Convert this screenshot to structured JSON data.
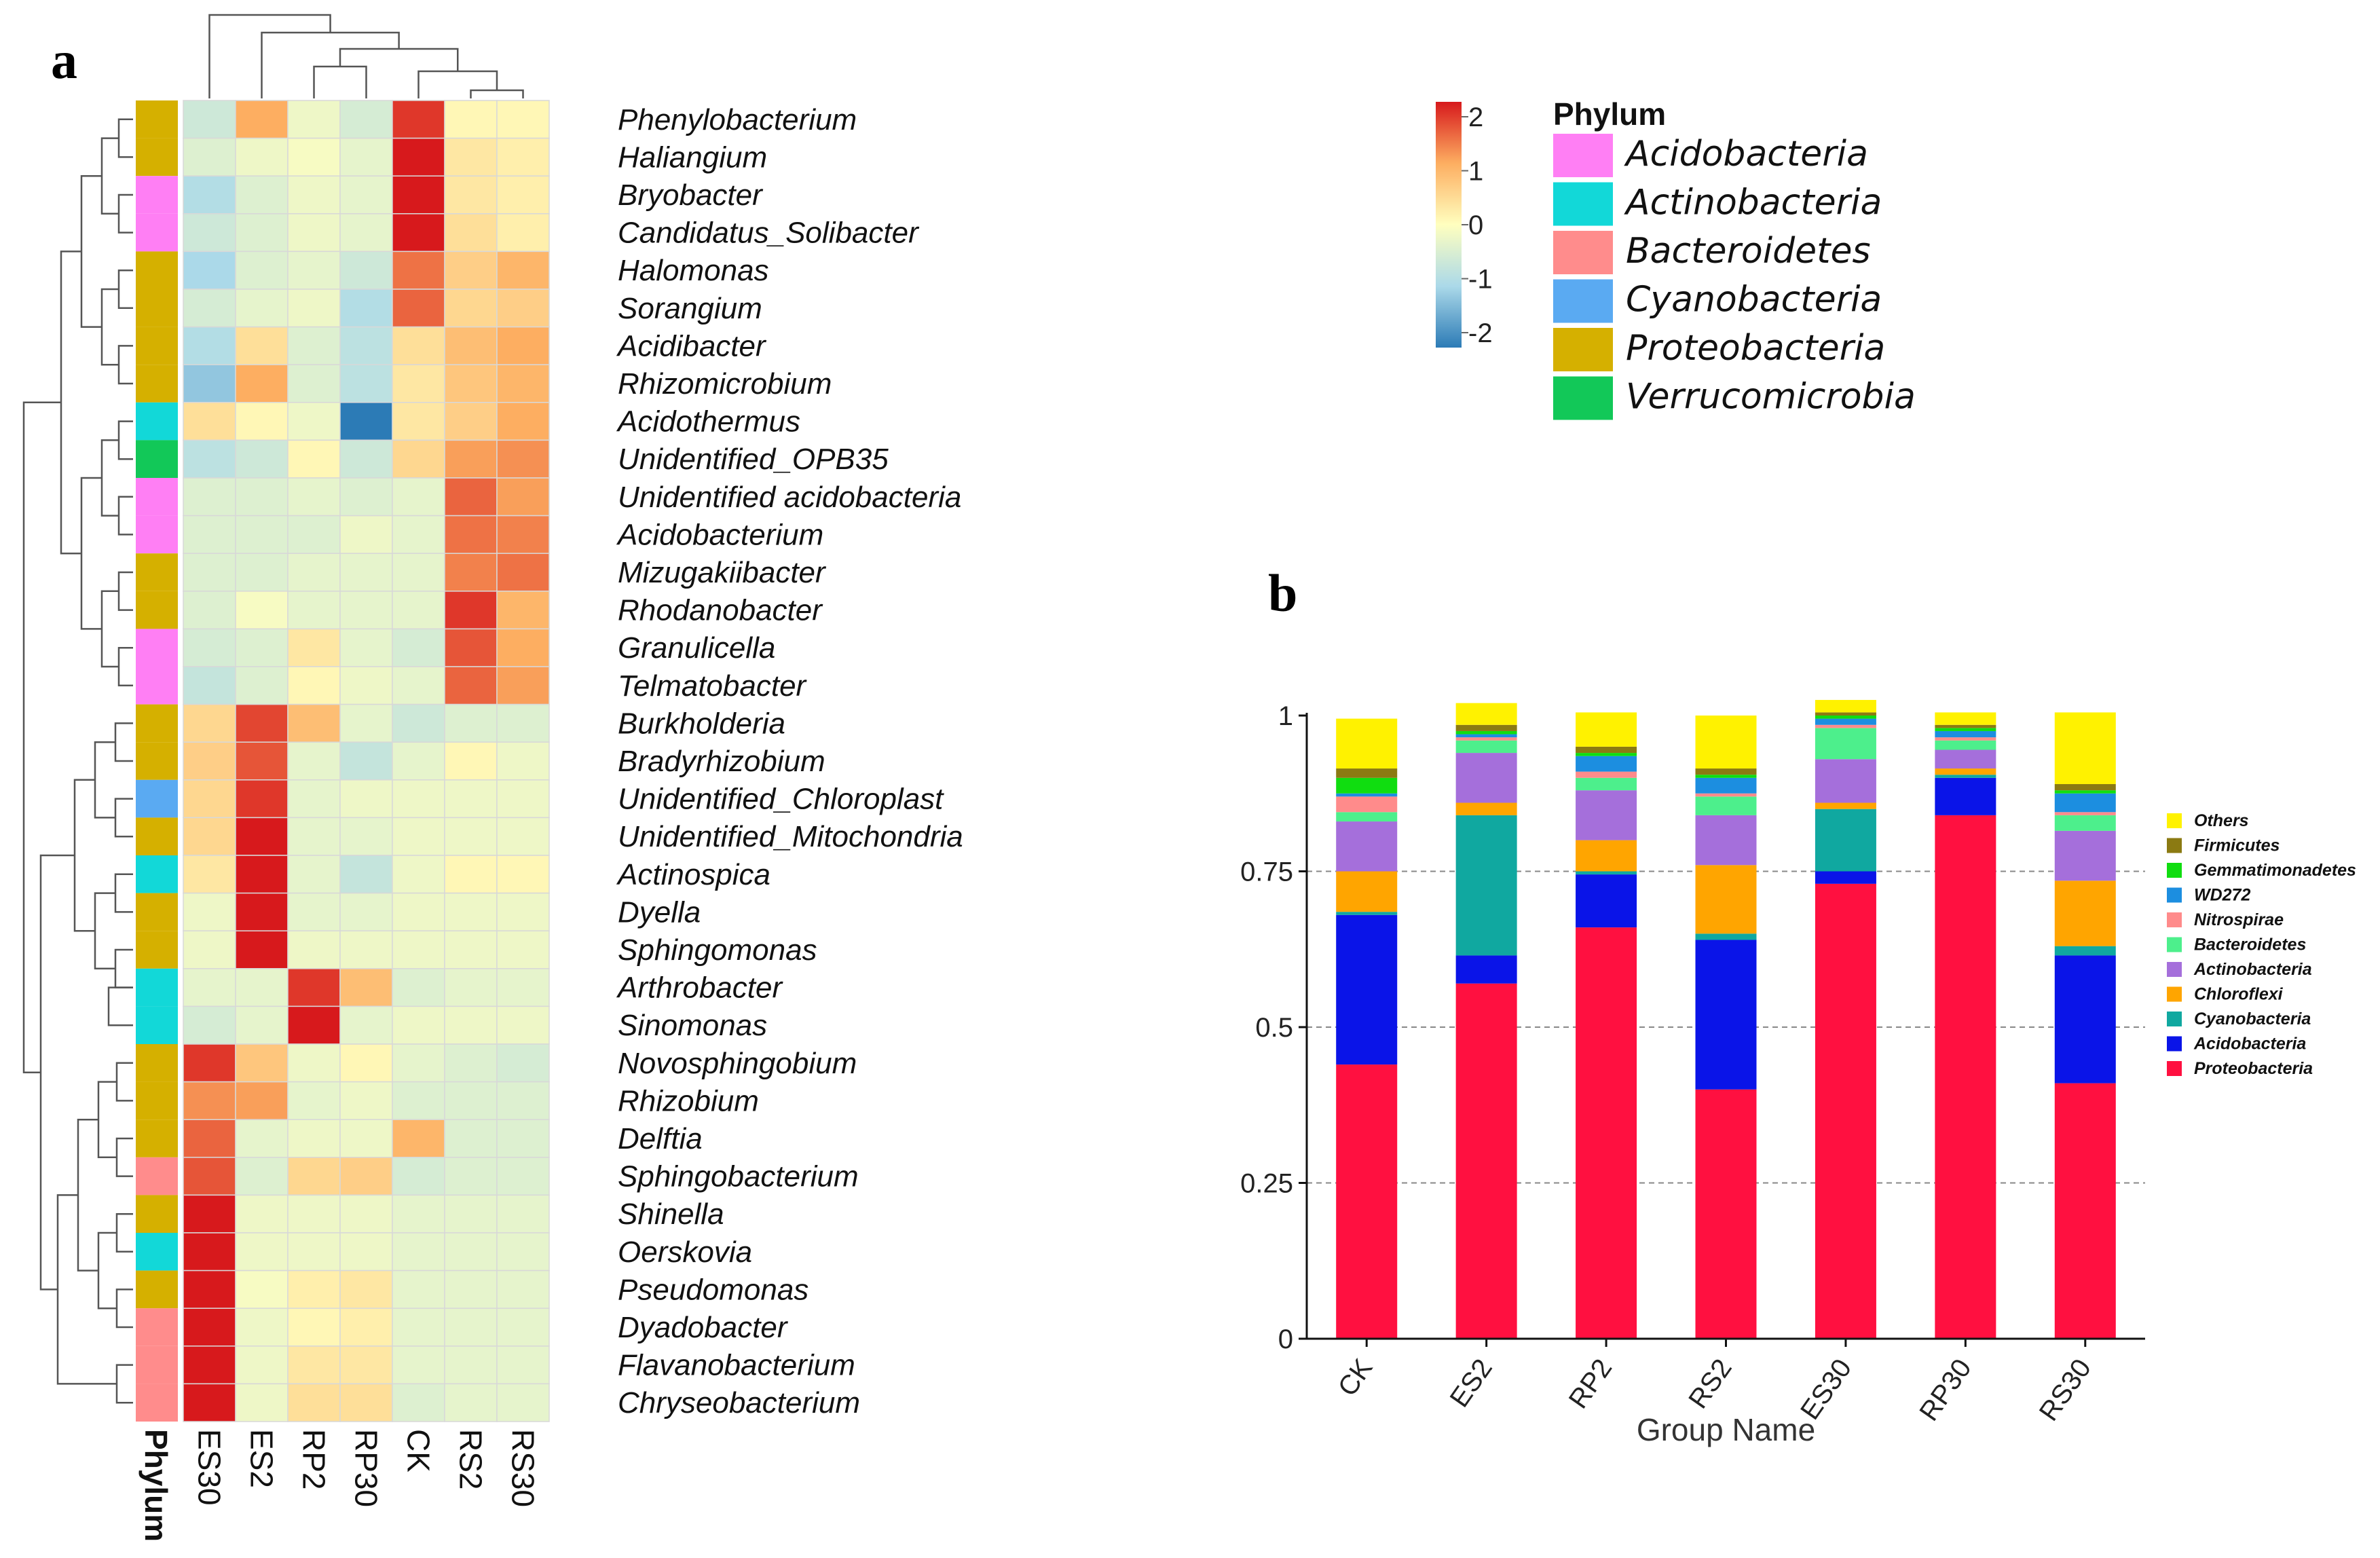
{
  "panels": {
    "a": "a",
    "b": "b"
  },
  "chart_data": [
    {
      "type": "heatmap",
      "title": "",
      "columns": [
        "ES30",
        "ES2",
        "RP2",
        "RP30",
        "CK",
        "RS2",
        "RS30"
      ],
      "annotation_label": "Phylum",
      "rows": [
        "Phenylobacterium",
        "Haliangium",
        "Bryobacter",
        "Candidatus_Solibacter",
        "Halomonas",
        "Sorangium",
        "Acidibacter",
        "Rhizomicrobium",
        "Acidothermus",
        "Unidentified_OPB35",
        "Unidentified acidobacteria",
        "Acidobacterium",
        "Mizugakiibacter",
        "Rhodanobacter",
        "Granulicella",
        "Telmatobacter",
        "Burkholderia",
        "Bradyrhizobium",
        "Unidentified_Chloroplast",
        "Unidentified_Mitochondria",
        "Actinospica",
        "Dyella",
        "Sphingomonas",
        "Arthrobacter",
        "Sinomonas",
        "Novosphingobium",
        "Rhizobium",
        "Delftia",
        "Sphingobacterium",
        "Shinella",
        "Oerskovia",
        "Pseudomonas",
        "Dyadobacter",
        "Flavanobacterium",
        "Chryseobacterium"
      ],
      "row_phylum": [
        "Proteobacteria",
        "Proteobacteria",
        "Acidobacteria",
        "Acidobacteria",
        "Proteobacteria",
        "Proteobacteria",
        "Proteobacteria",
        "Proteobacteria",
        "Actinobacteria",
        "Verrucomicrobia",
        "Acidobacteria",
        "Acidobacteria",
        "Proteobacteria",
        "Proteobacteria",
        "Acidobacteria",
        "Acidobacteria",
        "Proteobacteria",
        "Proteobacteria",
        "Cyanobacteria",
        "Proteobacteria",
        "Actinobacteria",
        "Proteobacteria",
        "Proteobacteria",
        "Actinobacteria",
        "Actinobacteria",
        "Proteobacteria",
        "Proteobacteria",
        "Proteobacteria",
        "Bacteroidetes",
        "Proteobacteria",
        "Actinobacteria",
        "Proteobacteria",
        "Bacteroidetes",
        "Bacteroidetes",
        "Bacteroidetes"
      ],
      "values": [
        [
          -0.6,
          1.0,
          -0.2,
          -0.5,
          1.8,
          0.1,
          0.1
        ],
        [
          -0.4,
          -0.2,
          -0.1,
          -0.3,
          2.2,
          0.3,
          0.2
        ],
        [
          -0.9,
          -0.4,
          -0.2,
          -0.3,
          2.2,
          0.3,
          0.2
        ],
        [
          -0.6,
          -0.4,
          -0.2,
          -0.3,
          2.2,
          0.4,
          0.2
        ],
        [
          -1.0,
          -0.4,
          -0.3,
          -0.6,
          1.4,
          0.6,
          0.9
        ],
        [
          -0.5,
          -0.3,
          -0.2,
          -0.9,
          1.5,
          0.5,
          0.6
        ],
        [
          -0.9,
          0.4,
          -0.4,
          -0.8,
          0.4,
          0.8,
          1.0
        ],
        [
          -1.2,
          1.0,
          -0.4,
          -0.8,
          0.3,
          0.7,
          0.9
        ],
        [
          0.4,
          0.1,
          -0.2,
          -2.1,
          0.3,
          0.6,
          1.0
        ],
        [
          -0.8,
          -0.6,
          0.1,
          -0.6,
          0.5,
          1.1,
          1.2
        ],
        [
          -0.4,
          -0.4,
          -0.3,
          -0.4,
          -0.3,
          1.5,
          1.1
        ],
        [
          -0.4,
          -0.4,
          -0.4,
          -0.2,
          -0.3,
          1.4,
          1.3
        ],
        [
          -0.4,
          -0.4,
          -0.3,
          -0.3,
          -0.3,
          1.3,
          1.4
        ],
        [
          -0.4,
          -0.1,
          -0.3,
          -0.3,
          -0.3,
          1.8,
          0.9
        ],
        [
          -0.5,
          -0.4,
          0.3,
          -0.3,
          -0.5,
          1.6,
          1.0
        ],
        [
          -0.7,
          -0.4,
          0.1,
          -0.2,
          -0.3,
          1.5,
          1.1
        ],
        [
          0.5,
          1.7,
          0.8,
          -0.3,
          -0.6,
          -0.4,
          -0.4
        ],
        [
          0.6,
          1.6,
          -0.3,
          -0.7,
          -0.3,
          0.1,
          -0.2
        ],
        [
          0.5,
          1.8,
          -0.3,
          -0.2,
          -0.2,
          -0.2,
          -0.2
        ],
        [
          0.5,
          2.0,
          -0.3,
          -0.3,
          -0.2,
          -0.2,
          -0.2
        ],
        [
          0.3,
          2.1,
          -0.3,
          -0.7,
          -0.2,
          0.1,
          0.1
        ],
        [
          -0.2,
          2.2,
          -0.3,
          -0.3,
          -0.2,
          -0.2,
          -0.2
        ],
        [
          -0.2,
          2.2,
          -0.2,
          -0.2,
          -0.2,
          -0.2,
          -0.2
        ],
        [
          -0.3,
          -0.3,
          1.8,
          0.8,
          -0.4,
          -0.3,
          -0.3
        ],
        [
          -0.5,
          -0.3,
          2.0,
          -0.3,
          -0.2,
          -0.2,
          -0.2
        ],
        [
          1.8,
          0.7,
          -0.2,
          0.1,
          -0.3,
          -0.4,
          -0.5
        ],
        [
          1.2,
          1.1,
          -0.3,
          -0.2,
          -0.4,
          -0.4,
          -0.4
        ],
        [
          1.5,
          -0.3,
          -0.2,
          -0.2,
          0.9,
          -0.4,
          -0.4
        ],
        [
          1.6,
          -0.4,
          0.5,
          0.6,
          -0.5,
          -0.4,
          -0.4
        ],
        [
          2.2,
          -0.2,
          -0.2,
          -0.2,
          -0.3,
          -0.3,
          -0.3
        ],
        [
          2.2,
          -0.2,
          -0.2,
          -0.2,
          -0.3,
          -0.3,
          -0.3
        ],
        [
          2.2,
          -0.1,
          0.2,
          0.3,
          -0.3,
          -0.3,
          -0.3
        ],
        [
          2.2,
          -0.2,
          0.1,
          0.2,
          -0.3,
          -0.3,
          -0.3
        ],
        [
          2.2,
          -0.2,
          0.3,
          0.3,
          -0.3,
          -0.3,
          -0.3
        ],
        [
          2.2,
          -0.2,
          0.4,
          0.4,
          -0.4,
          -0.3,
          -0.3
        ]
      ],
      "scale": {
        "min": -2,
        "max": 2,
        "ticks": [
          2,
          1,
          0,
          -1,
          -2
        ]
      },
      "phylum_legend": {
        "title": "Phylum",
        "items": [
          {
            "name": "Acidobacteria",
            "color": "#ff7ff4"
          },
          {
            "name": "Actinobacteria",
            "color": "#12d8d8"
          },
          {
            "name": "Bacteroidetes",
            "color": "#ff8c8c"
          },
          {
            "name": "Cyanobacteria",
            "color": "#5aaaf2"
          },
          {
            "name": "Proteobacteria",
            "color": "#d5b000"
          },
          {
            "name": "Verrucomicrobia",
            "color": "#12c858"
          }
        ]
      }
    },
    {
      "type": "bar",
      "stacked": true,
      "title": "",
      "xlabel": "Group Name",
      "ylabel": "",
      "ylim": [
        0,
        1
      ],
      "yticks": [
        "0",
        "0.25",
        "0.5",
        "0.75",
        "1"
      ],
      "categories": [
        "CK",
        "ES2",
        "RP2",
        "RS2",
        "ES30",
        "RP30",
        "RS30"
      ],
      "series": [
        {
          "name": "Proteobacteria",
          "color": "#ff1040",
          "values": [
            0.44,
            0.57,
            0.66,
            0.4,
            0.73,
            0.84,
            0.41
          ]
        },
        {
          "name": "Acidobacteria",
          "color": "#0a14e8",
          "values": [
            0.24,
            0.045,
            0.085,
            0.24,
            0.02,
            0.06,
            0.205
          ]
        },
        {
          "name": "Cyanobacteria",
          "color": "#10a8a0",
          "values": [
            0.005,
            0.225,
            0.005,
            0.01,
            0.1,
            0.005,
            0.015
          ]
        },
        {
          "name": "Chloroflexi",
          "color": "#ffa500",
          "values": [
            0.065,
            0.02,
            0.05,
            0.11,
            0.01,
            0.01,
            0.105
          ]
        },
        {
          "name": "Actinobacteria",
          "color": "#a56fdb",
          "values": [
            0.08,
            0.08,
            0.08,
            0.08,
            0.07,
            0.03,
            0.08
          ]
        },
        {
          "name": "Bacteroidetes",
          "color": "#4def8c",
          "values": [
            0.015,
            0.02,
            0.02,
            0.03,
            0.05,
            0.015,
            0.025
          ]
        },
        {
          "name": "Nitrospirae",
          "color": "#ff8b8b",
          "values": [
            0.025,
            0.005,
            0.01,
            0.005,
            0.005,
            0.005,
            0.005
          ]
        },
        {
          "name": "WD272",
          "color": "#1c8ee0",
          "values": [
            0.005,
            0.005,
            0.025,
            0.025,
            0.01,
            0.01,
            0.03
          ]
        },
        {
          "name": "Gemmatimonadetes",
          "color": "#10dd10",
          "values": [
            0.025,
            0.005,
            0.005,
            0.005,
            0.005,
            0.005,
            0.005
          ]
        },
        {
          "name": "Firmicutes",
          "color": "#8b7a12",
          "values": [
            0.015,
            0.01,
            0.01,
            0.01,
            0.005,
            0.005,
            0.01
          ]
        },
        {
          "name": "Others",
          "color": "#fff200",
          "values": [
            0.08,
            0.035,
            0.055,
            0.085,
            0.02,
            0.02,
            0.115
          ]
        }
      ],
      "legend_order": [
        "Others",
        "Firmicutes",
        "Gemmatimonadetes",
        "WD272",
        "Nitrospirae",
        "Bacteroidetes",
        "Actinobacteria",
        "Chloroflexi",
        "Cyanobacteria",
        "Acidobacteria",
        "Proteobacteria"
      ]
    }
  ]
}
